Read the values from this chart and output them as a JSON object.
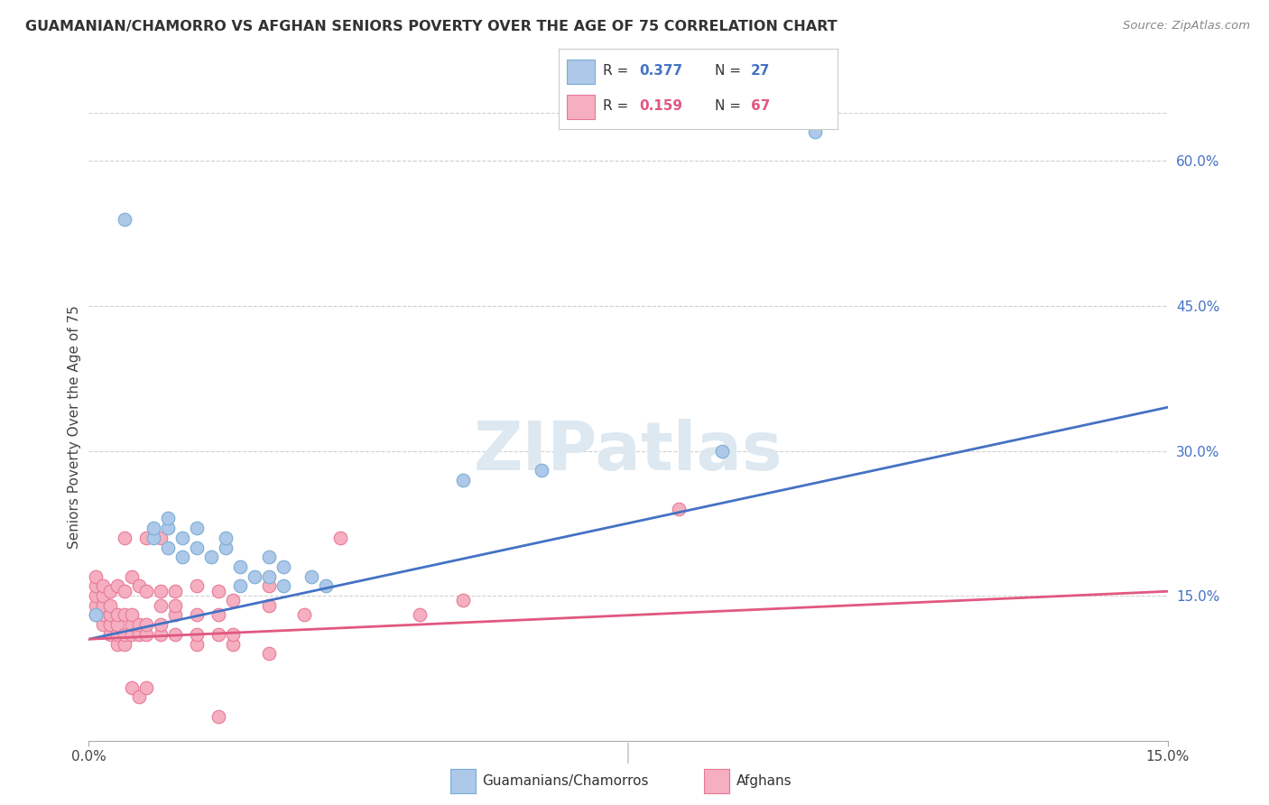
{
  "title": "GUAMANIAN/CHAMORRO VS AFGHAN SENIORS POVERTY OVER THE AGE OF 75 CORRELATION CHART",
  "source": "Source: ZipAtlas.com",
  "ylabel": "Seniors Poverty Over the Age of 75",
  "x_min": 0.0,
  "x_max": 0.15,
  "y_min": 0.0,
  "y_max": 0.65,
  "y_ticks": [
    0.15,
    0.3,
    0.45,
    0.6
  ],
  "y_tick_labels": [
    "15.0%",
    "30.0%",
    "45.0%",
    "60.0%"
  ],
  "guamanian_color": "#adc8e8",
  "guamanian_edge_color": "#7aadd4",
  "afghan_color": "#f5afc0",
  "afghan_edge_color": "#e87898",
  "legend_label_guamanian": "Guamanians/Chamorros",
  "legend_label_afghan": "Afghans",
  "trendline_guamanian_color": "#4472c4",
  "trendline_afghan_color": "#e05880",
  "trendline_guamanian_slope": 1.6,
  "trendline_guamanian_intercept": 0.105,
  "trendline_afghan_slope": 0.33,
  "trendline_afghan_intercept": 0.105,
  "watermark_text": "ZIPatlas",
  "title_color": "#333333",
  "right_tick_color": "#4472c4",
  "guamanian_R": "0.377",
  "guamanian_N": "27",
  "afghan_R": "0.159",
  "afghan_N": "67",
  "guamanian_points": [
    [
      0.001,
      0.13
    ],
    [
      0.005,
      0.54
    ],
    [
      0.009,
      0.21
    ],
    [
      0.009,
      0.22
    ],
    [
      0.011,
      0.2
    ],
    [
      0.011,
      0.22
    ],
    [
      0.011,
      0.23
    ],
    [
      0.013,
      0.19
    ],
    [
      0.013,
      0.21
    ],
    [
      0.015,
      0.2
    ],
    [
      0.015,
      0.22
    ],
    [
      0.017,
      0.19
    ],
    [
      0.019,
      0.2
    ],
    [
      0.019,
      0.21
    ],
    [
      0.021,
      0.16
    ],
    [
      0.021,
      0.18
    ],
    [
      0.023,
      0.17
    ],
    [
      0.025,
      0.17
    ],
    [
      0.025,
      0.19
    ],
    [
      0.027,
      0.16
    ],
    [
      0.027,
      0.18
    ],
    [
      0.031,
      0.17
    ],
    [
      0.033,
      0.16
    ],
    [
      0.052,
      0.27
    ],
    [
      0.063,
      0.28
    ],
    [
      0.088,
      0.3
    ],
    [
      0.101,
      0.63
    ]
  ],
  "afghan_points": [
    [
      0.001,
      0.13
    ],
    [
      0.001,
      0.14
    ],
    [
      0.001,
      0.15
    ],
    [
      0.001,
      0.16
    ],
    [
      0.001,
      0.17
    ],
    [
      0.002,
      0.12
    ],
    [
      0.002,
      0.13
    ],
    [
      0.002,
      0.14
    ],
    [
      0.002,
      0.15
    ],
    [
      0.002,
      0.16
    ],
    [
      0.003,
      0.11
    ],
    [
      0.003,
      0.12
    ],
    [
      0.003,
      0.13
    ],
    [
      0.003,
      0.14
    ],
    [
      0.003,
      0.155
    ],
    [
      0.004,
      0.1
    ],
    [
      0.004,
      0.11
    ],
    [
      0.004,
      0.12
    ],
    [
      0.004,
      0.13
    ],
    [
      0.004,
      0.16
    ],
    [
      0.005,
      0.1
    ],
    [
      0.005,
      0.11
    ],
    [
      0.005,
      0.13
    ],
    [
      0.005,
      0.155
    ],
    [
      0.005,
      0.21
    ],
    [
      0.006,
      0.055
    ],
    [
      0.006,
      0.11
    ],
    [
      0.006,
      0.12
    ],
    [
      0.006,
      0.13
    ],
    [
      0.006,
      0.17
    ],
    [
      0.007,
      0.045
    ],
    [
      0.007,
      0.11
    ],
    [
      0.007,
      0.12
    ],
    [
      0.007,
      0.16
    ],
    [
      0.008,
      0.055
    ],
    [
      0.008,
      0.11
    ],
    [
      0.008,
      0.12
    ],
    [
      0.008,
      0.155
    ],
    [
      0.008,
      0.21
    ],
    [
      0.01,
      0.11
    ],
    [
      0.01,
      0.12
    ],
    [
      0.01,
      0.14
    ],
    [
      0.01,
      0.155
    ],
    [
      0.01,
      0.21
    ],
    [
      0.012,
      0.11
    ],
    [
      0.012,
      0.13
    ],
    [
      0.012,
      0.14
    ],
    [
      0.012,
      0.155
    ],
    [
      0.015,
      0.1
    ],
    [
      0.015,
      0.11
    ],
    [
      0.015,
      0.13
    ],
    [
      0.015,
      0.16
    ],
    [
      0.018,
      0.025
    ],
    [
      0.018,
      0.11
    ],
    [
      0.018,
      0.13
    ],
    [
      0.018,
      0.155
    ],
    [
      0.02,
      0.1
    ],
    [
      0.02,
      0.11
    ],
    [
      0.02,
      0.145
    ],
    [
      0.025,
      0.09
    ],
    [
      0.025,
      0.14
    ],
    [
      0.025,
      0.16
    ],
    [
      0.03,
      0.13
    ],
    [
      0.035,
      0.21
    ],
    [
      0.046,
      0.13
    ],
    [
      0.052,
      0.145
    ],
    [
      0.082,
      0.24
    ]
  ]
}
